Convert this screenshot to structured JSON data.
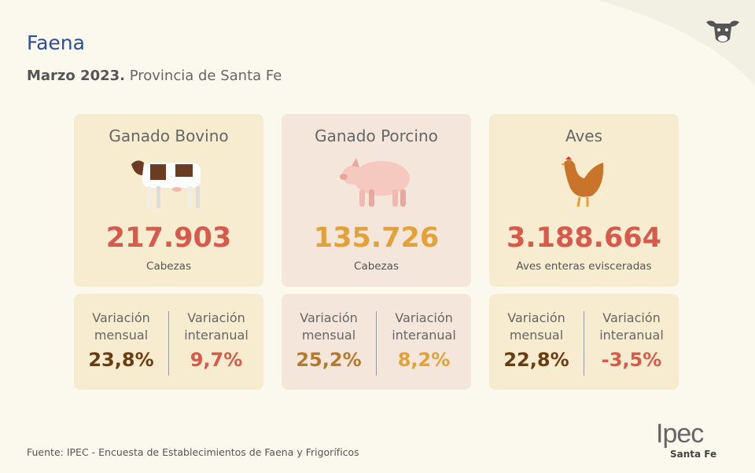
{
  "header": {
    "title": "Faena",
    "subtitle_bold": "Marzo 2023.",
    "subtitle": "Provincia de Santa Fe"
  },
  "cards": [
    {
      "title": "Ganado Bovino",
      "value": "217.903",
      "unit": "Cabezas",
      "variations": [
        {
          "label": "Variación mensual",
          "value": "23,8%"
        },
        {
          "label": "Variación interanual",
          "value": "9,7%"
        }
      ]
    },
    {
      "title": "Ganado Porcino",
      "value": "135.726",
      "unit": "Cabezas",
      "variations": [
        {
          "label": "Variación mensual",
          "value": "25,2%"
        },
        {
          "label": "Variación interanual",
          "value": "8,2%"
        }
      ]
    },
    {
      "title": "Aves",
      "value": "3.188.664",
      "unit": "Aves enteras evisceradas",
      "variations": [
        {
          "label": "Variación mensual",
          "value": "22,8%"
        },
        {
          "label": "Variación interanual",
          "value": "-3,5%"
        }
      ]
    }
  ],
  "footer": {
    "source": "Fuente: IPEC - Encuesta de Establecimientos de Faena y Frigoríficos",
    "logo": "Ipec",
    "logo_sub": "Santa Fe"
  }
}
